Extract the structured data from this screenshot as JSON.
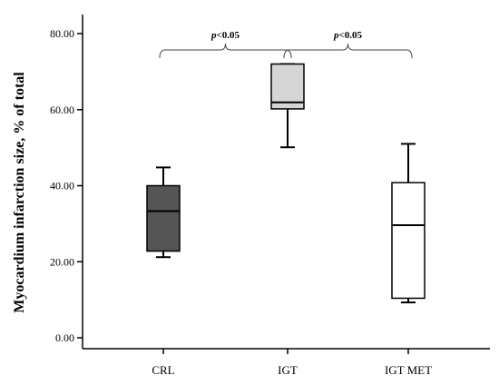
{
  "chart_data": {
    "type": "box",
    "title": "",
    "xlabel": "",
    "ylabel": "Myocardium infarction size, % of total",
    "ylim": [
      0,
      80
    ],
    "yticks": [
      0,
      20,
      40,
      60,
      80
    ],
    "ytick_labels": [
      "0.00",
      "20.00",
      "40.00",
      "60.00",
      "80.00"
    ],
    "grid": false,
    "categories": [
      "CRL",
      "IGT",
      "IGT MET"
    ],
    "boxes": [
      {
        "category": "CRL",
        "min": 21.2,
        "q1": 22.8,
        "median": 33.3,
        "q3": 40.0,
        "max": 44.8,
        "fill": "#555555"
      },
      {
        "category": "IGT",
        "min": 50.1,
        "q1": 60.2,
        "median": 61.9,
        "q3": 72.0,
        "max": 72.0,
        "fill": "#d6d6d6"
      },
      {
        "category": "IGT MET",
        "min": 9.3,
        "q1": 10.4,
        "median": 29.6,
        "q3": 40.8,
        "max": 51.0,
        "fill": "#ffffff"
      }
    ],
    "annotations": [
      {
        "from": "CRL",
        "to": "IGT",
        "label": "<0.05",
        "prefix": "p"
      },
      {
        "from": "IGT",
        "to": "IGT MET",
        "label": "<0.05",
        "prefix": "p"
      }
    ]
  }
}
